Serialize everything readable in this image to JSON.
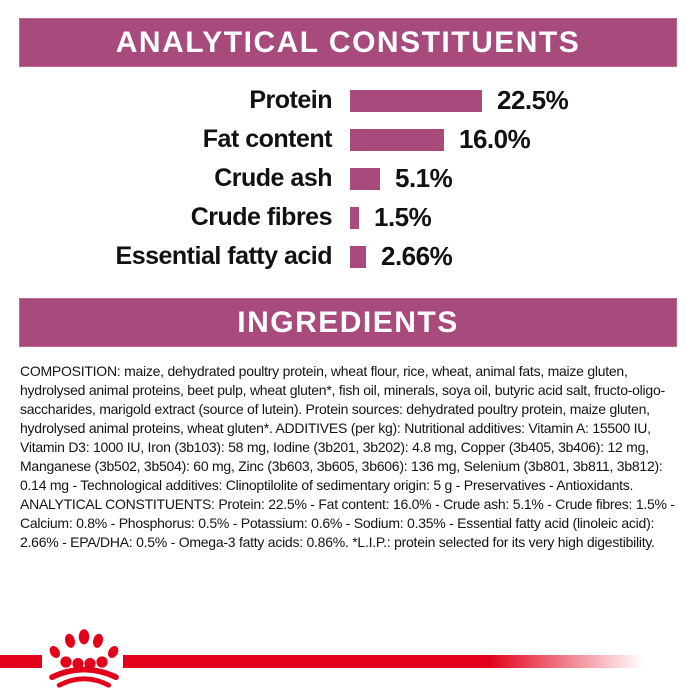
{
  "colors": {
    "banner_magenta": "#a84a7b",
    "bar_magenta": "#a84a7b",
    "brand_red": "#e2001a",
    "text_black": "#141414"
  },
  "sections": {
    "analytical": {
      "title": "ANALYTICAL CONSTITUENTS"
    },
    "ingredients": {
      "title": "INGREDIENTS",
      "text": "COMPOSITION: maize, dehydrated poultry protein, wheat flour, rice, wheat, animal fats, maize gluten, hydrolysed animal proteins, beet pulp, wheat gluten*, fish oil, minerals, soya oil, butyric acid salt, fructo-oligo-saccharides, marigold extract (source of lutein). Protein sources: dehydrated poultry protein, maize gluten, hydrolysed animal proteins, wheat gluten*. ADDITIVES (per kg): Nutritional additives: Vitamin A: 15500 IU, Vitamin D3: 1000 IU, Iron (3b103): 58 mg, Iodine (3b201, 3b202): 4.8 mg, Copper (3b405, 3b406): 12 mg, Manganese (3b502, 3b504): 60 mg, Zinc (3b603, 3b605, 3b606): 136 mg, Selenium (3b801, 3b811, 3b812): 0.14 mg - Technological additives: Clinoptilolite of sedimentary origin: 5 g - Preservatives - Antioxidants. ANALYTICAL CONSTITUENTS: Protein: 22.5% - Fat content: 16.0% - Crude ash: 5.1% - Crude fibres: 1.5% - Calcium: 0.8% - Phosphorus: 0.5% - Potassium: 0.6% - Sodium: 0.35% - Essential fatty acid (linoleic acid): 2.66% - EPA/DHA: 0.5% - Omega-3 fatty acids: 0.86%. *L.I.P.: protein selected for its very high digestibility."
    }
  },
  "chart_data": {
    "type": "bar",
    "orientation": "horizontal",
    "title": "ANALYTICAL CONSTITUENTS",
    "categories": [
      "Protein",
      "Fat content",
      "Crude ash",
      "Crude fibres",
      "Essential fatty acid"
    ],
    "values": [
      22.5,
      16.0,
      5.1,
      1.5,
      2.66
    ],
    "value_labels": [
      "22.5%",
      "16.0%",
      "5.1%",
      "1.5%",
      "2.66%"
    ],
    "bar_color": "#a84a7b",
    "xlim": [
      0,
      22.5
    ],
    "grid": false,
    "legend": false
  },
  "footer": {
    "logo": "royal-canin-crown-logo"
  }
}
